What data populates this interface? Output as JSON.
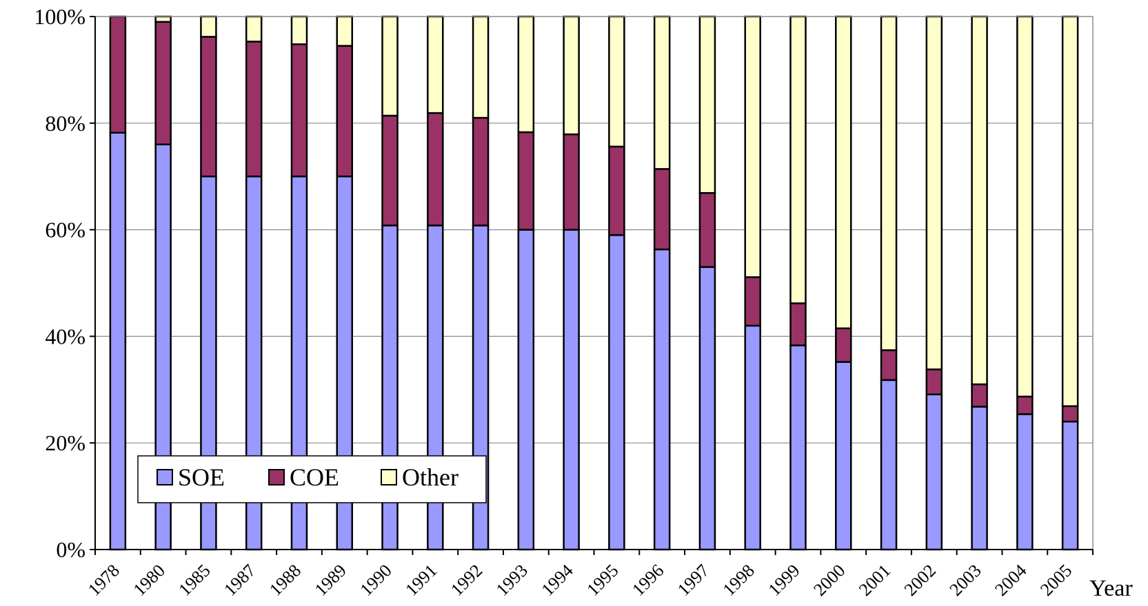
{
  "chart_data": {
    "type": "bar",
    "stacked": true,
    "percent_stacked": true,
    "categories": [
      "1978",
      "1980",
      "1985",
      "1987",
      "1988",
      "1989",
      "1990",
      "1991",
      "1992",
      "1993",
      "1994",
      "1995",
      "1996",
      "1997",
      "1998",
      "1999",
      "2000",
      "2001",
      "2002",
      "2003",
      "2004",
      "2005"
    ],
    "series": [
      {
        "name": "SOE",
        "color": "#9999ff",
        "values": [
          78.2,
          76.0,
          70.0,
          70.0,
          70.0,
          70.0,
          60.8,
          60.8,
          60.8,
          60.0,
          60.0,
          59.0,
          56.3,
          53.0,
          42.0,
          38.3,
          35.2,
          31.8,
          29.1,
          26.8,
          25.4,
          24.0
        ]
      },
      {
        "name": "COE",
        "color": "#993366",
        "values": [
          21.8,
          23.0,
          26.2,
          25.3,
          24.8,
          24.5,
          20.6,
          21.1,
          20.2,
          18.3,
          17.9,
          16.6,
          15.1,
          13.9,
          9.1,
          7.9,
          6.3,
          5.6,
          4.7,
          4.2,
          3.3,
          2.9
        ]
      },
      {
        "name": "Other",
        "color": "#ffffcc",
        "values": [
          0.0,
          1.0,
          3.8,
          4.7,
          5.2,
          5.5,
          18.6,
          18.1,
          19.0,
          21.7,
          22.1,
          24.4,
          28.6,
          33.1,
          48.9,
          53.8,
          58.5,
          62.6,
          66.2,
          69.0,
          71.3,
          73.1
        ]
      }
    ],
    "yticks": [
      "0%",
      "20%",
      "40%",
      "60%",
      "80%",
      "100%"
    ],
    "ylim": [
      0,
      100
    ],
    "xlabel": "Year",
    "ylabel": "",
    "title": "",
    "grid": true,
    "legend_position": "lower-left"
  }
}
